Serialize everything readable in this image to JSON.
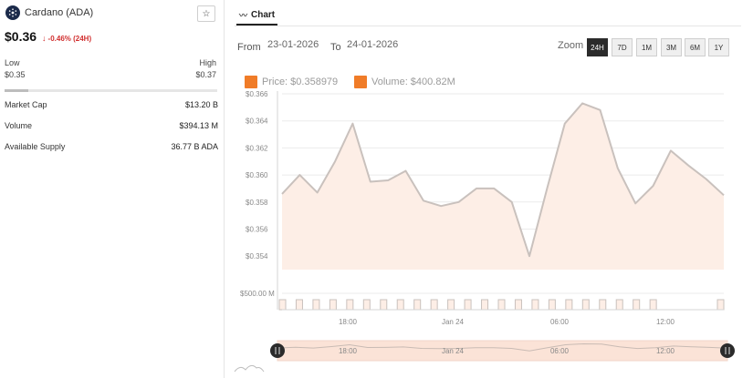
{
  "coin": {
    "name": "Cardano (ADA)",
    "star_icon": "☆",
    "price": "$0.36",
    "change_arrow": "↓",
    "change": "-0.46% (24H)",
    "change_color": "#d12f2f"
  },
  "range": {
    "low_label": "Low",
    "low_value": "$0.35",
    "high_label": "High",
    "high_value": "$0.37",
    "position_fraction": 0.11
  },
  "stats": [
    {
      "label": "Market Cap",
      "value": "$13.20 B"
    },
    {
      "label": "Volume",
      "value": "$394.13 M"
    },
    {
      "label": "Available Supply",
      "value": "36.77 B ADA"
    }
  ],
  "chart_panel": {
    "tab_icon": "chart-line-icon",
    "tab_label": "Chart",
    "from_label": "From",
    "from_value": "23-01-2026",
    "to_label": "To",
    "to_value": "24-01-2026",
    "zoom_label": "Zoom",
    "zoom_options": [
      "24H",
      "7D",
      "1M",
      "3M",
      "6M",
      "1Y"
    ],
    "zoom_selected": "24H",
    "legend_price": "Price: $0.358979",
    "legend_volume": "Volume: $400.82M",
    "accent": "#f07c28",
    "area_fill": "#fdeee6",
    "line_color": "#c9c1bd"
  },
  "chart_data": {
    "type": "line",
    "y_ticks": [
      "$0.366",
      "$0.364",
      "$0.362",
      "$0.360",
      "$0.358",
      "$0.356",
      "$0.354"
    ],
    "ylim": [
      0.353,
      0.366
    ],
    "x_ticks": [
      "18:00",
      "Jan 24",
      "06:00",
      "12:00"
    ],
    "price_series": [
      {
        "t": 0.0,
        "v": 0.3586
      },
      {
        "t": 0.5,
        "v": 0.36
      },
      {
        "t": 1.0,
        "v": 0.3587
      },
      {
        "t": 1.5,
        "v": 0.361
      },
      {
        "t": 2.0,
        "v": 0.3638
      },
      {
        "t": 2.5,
        "v": 0.3595
      },
      {
        "t": 3.0,
        "v": 0.3596
      },
      {
        "t": 3.5,
        "v": 0.3603
      },
      {
        "t": 4.0,
        "v": 0.3581
      },
      {
        "t": 4.5,
        "v": 0.3577
      },
      {
        "t": 5.0,
        "v": 0.358
      },
      {
        "t": 5.5,
        "v": 0.359
      },
      {
        "t": 6.0,
        "v": 0.359
      },
      {
        "t": 6.5,
        "v": 0.358
      },
      {
        "t": 7.0,
        "v": 0.354
      },
      {
        "t": 7.5,
        "v": 0.359
      },
      {
        "t": 8.0,
        "v": 0.3638
      },
      {
        "t": 8.5,
        "v": 0.3653
      },
      {
        "t": 9.0,
        "v": 0.3648
      },
      {
        "t": 9.5,
        "v": 0.3605
      },
      {
        "t": 10.0,
        "v": 0.3579
      },
      {
        "t": 10.5,
        "v": 0.3592
      },
      {
        "t": 11.0,
        "v": 0.3618
      },
      {
        "t": 11.5,
        "v": 0.3607
      },
      {
        "t": 12.0,
        "v": 0.3597
      },
      {
        "t": 12.5,
        "v": 0.3585
      }
    ],
    "volume_label": "$500.00 M",
    "volume_bars": 27,
    "navigator_labels": [
      "18:00",
      "Jan 24",
      "06:00",
      "12:00"
    ]
  }
}
